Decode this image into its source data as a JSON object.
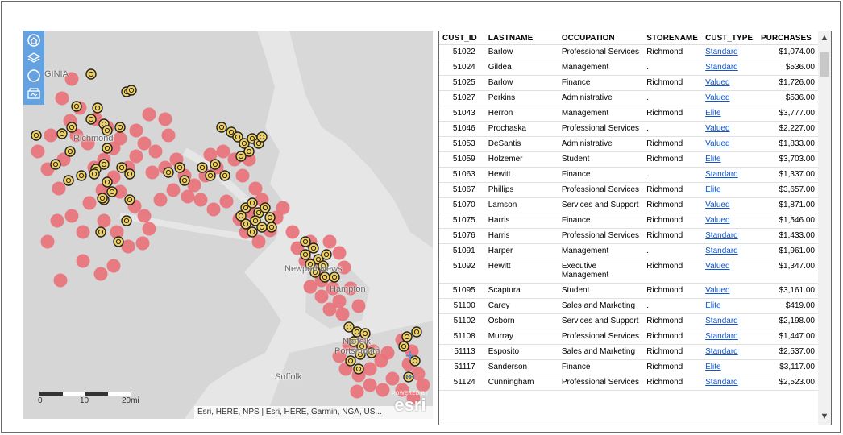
{
  "map": {
    "labels": {
      "virginia": "GINIA",
      "richmond": "Richmond",
      "newport_news": "Newport News",
      "hampton": "Hampton",
      "norfolk": "Norfolk",
      "portsmouth": "Portsmouth",
      "suffolk": "Suffolk"
    },
    "tools": [
      "home-icon",
      "layers-icon",
      "compass-icon",
      "basemap-icon"
    ],
    "zoom": {
      "in": "+",
      "out": "−"
    },
    "scale": {
      "t0": "0",
      "t1": "10",
      "t2": "20mi"
    },
    "attribution": "Esri, HERE, NPS | Esri, HERE, Garmin, NGA, US...",
    "logo": {
      "small": "POWERED BY",
      "big": "esri"
    },
    "colors": {
      "water": "#e6e6e6",
      "land": "#d4d4d4",
      "cluster": "#e8737a",
      "marker": "#f0d060"
    }
  },
  "table": {
    "headers": [
      "CUST_ID",
      "LASTNAME",
      "OCCUPATION",
      "STORENAME",
      "CUST_TYPE",
      "PURCHASES"
    ],
    "link_color": "#1155cc",
    "rows": [
      {
        "id": "51022",
        "last": "Barlow",
        "occ": "Professional Services",
        "store": "Richmond",
        "type": "Standard",
        "amt": "$1,074.00"
      },
      {
        "id": "51024",
        "last": "Gildea",
        "occ": "Management",
        "store": ".",
        "type": "Standard",
        "amt": "$536.00"
      },
      {
        "id": "51025",
        "last": "Barlow",
        "occ": "Finance",
        "store": "Richmond",
        "type": "Valued",
        "amt": "$1,726.00"
      },
      {
        "id": "51027",
        "last": "Perkins",
        "occ": "Administrative",
        "store": ".",
        "type": "Valued",
        "amt": "$536.00"
      },
      {
        "id": "51043",
        "last": "Herron",
        "occ": "Management",
        "store": "Richmond",
        "type": "Elite",
        "amt": "$3,777.00"
      },
      {
        "id": "51046",
        "last": "Prochaska",
        "occ": "Professional Services",
        "store": ".",
        "type": "Valued",
        "amt": "$2,227.00"
      },
      {
        "id": "51053",
        "last": "DeSantis",
        "occ": "Administrative",
        "store": "Richmond",
        "type": "Valued",
        "amt": "$1,833.00"
      },
      {
        "id": "51059",
        "last": "Holzemer",
        "occ": "Student",
        "store": "Richmond",
        "type": "Elite",
        "amt": "$3,703.00"
      },
      {
        "id": "51063",
        "last": "Hewitt",
        "occ": "Finance",
        "store": ".",
        "type": "Standard",
        "amt": "$1,337.00"
      },
      {
        "id": "51067",
        "last": "Phillips",
        "occ": "Professional Services",
        "store": "Richmond",
        "type": "Elite",
        "amt": "$3,657.00"
      },
      {
        "id": "51070",
        "last": "Lamson",
        "occ": "Services and Support",
        "store": "Richmond",
        "type": "Valued",
        "amt": "$1,871.00"
      },
      {
        "id": "51075",
        "last": "Harris",
        "occ": "Finance",
        "store": "Richmond",
        "type": "Valued",
        "amt": "$1,546.00"
      },
      {
        "id": "51076",
        "last": "Harris",
        "occ": "Professional Services",
        "store": "Richmond",
        "type": "Standard",
        "amt": "$1,433.00"
      },
      {
        "id": "51091",
        "last": "Harper",
        "occ": "Management",
        "store": ".",
        "type": "Standard",
        "amt": "$1,961.00"
      },
      {
        "id": "51092",
        "last": "Hewitt",
        "occ": "Executive Management",
        "store": "Richmond",
        "type": "Valued",
        "amt": "$1,347.00"
      },
      {
        "id": "51095",
        "last": "Scaptura",
        "occ": "Student",
        "store": "Richmond",
        "type": "Valued",
        "amt": "$3,161.00"
      },
      {
        "id": "51100",
        "last": "Carey",
        "occ": "Sales and Marketing",
        "store": ".",
        "type": "Elite",
        "amt": "$419.00"
      },
      {
        "id": "51102",
        "last": "Osborn",
        "occ": "Services and Support",
        "store": "Richmond",
        "type": "Standard",
        "amt": "$2,198.00"
      },
      {
        "id": "51108",
        "last": "Murray",
        "occ": "Professional Services",
        "store": "Richmond",
        "type": "Standard",
        "amt": "$1,447.00"
      },
      {
        "id": "51113",
        "last": "Esposito",
        "occ": "Sales and Marketing",
        "store": "Richmond",
        "type": "Standard",
        "amt": "$2,537.00"
      },
      {
        "id": "51117",
        "last": "Sanderson",
        "occ": "Finance",
        "store": "Richmond",
        "type": "Elite",
        "amt": "$3,117.00"
      },
      {
        "id": "51124",
        "last": "Cunningham",
        "occ": "Professional Services",
        "store": "Richmond",
        "type": "Standard",
        "amt": "$2,523.00"
      }
    ]
  },
  "scrollbar": {
    "up": "▲",
    "down": "▼"
  }
}
